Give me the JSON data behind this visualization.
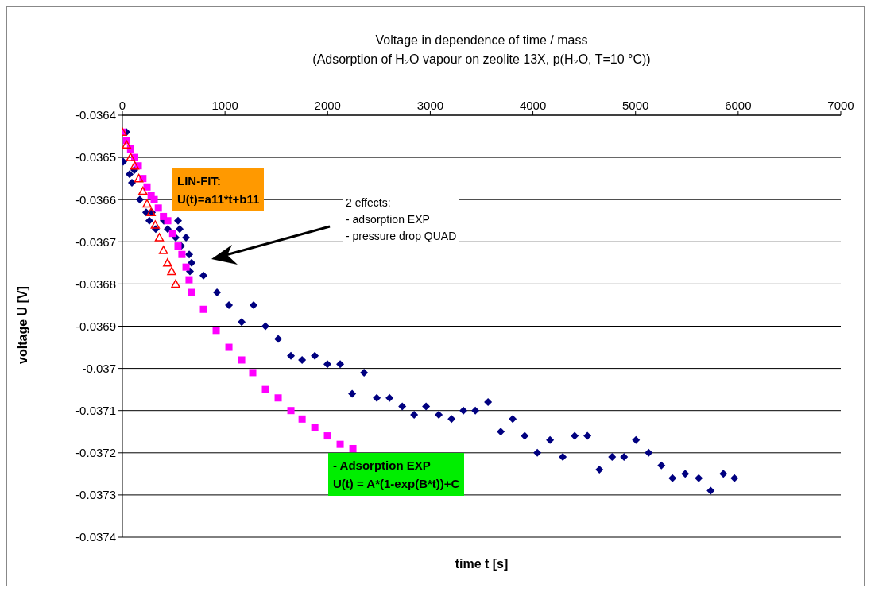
{
  "chart_data": {
    "type": "scatter",
    "title": "Voltage in dependence of time / mass",
    "subtitle": "(Adsorption of H₂O vapour on zeolite 13X, p(H₂O, T=10 °C))",
    "xlabel": "time t [s]",
    "ylabel": "voltage U [V]",
    "xlim": [
      0,
      7000
    ],
    "xticks": [
      0,
      1000,
      2000,
      3000,
      4000,
      5000,
      6000,
      7000
    ],
    "ylim": [
      -0.0374,
      -0.0364
    ],
    "yticks": [
      -0.0374,
      -0.0373,
      -0.0372,
      -0.0371,
      -0.037,
      -0.0369,
      -0.0368,
      -0.0367,
      -0.0366,
      -0.0365,
      -0.0364
    ],
    "grid": "y",
    "series": [
      {
        "marker": "diamond",
        "color": "#000080",
        "x": [
          39,
          8,
          70,
          93,
          116,
          170,
          232,
          263,
          287,
          325,
          403,
          442,
          542,
          519,
          558,
          573,
          620,
          651,
          674,
          658,
          790,
          922,
          1038,
          1278,
          1162,
          1394,
          1518,
          1642,
          1751,
          1875,
          1998,
          2122,
          2239,
          2355,
          2479,
          2603,
          2727,
          2843,
          2959,
          3083,
          3207,
          3323,
          3439,
          3563,
          3687,
          3803,
          3920,
          4043,
          4167,
          4291,
          4407,
          4531,
          4648,
          4772,
          4888,
          5004,
          5128,
          5252,
          5360,
          5484,
          5616,
          5732,
          5856,
          5964
        ],
        "values": [
          -0.03644,
          -0.03651,
          -0.03654,
          -0.03656,
          -0.03653,
          -0.0366,
          -0.03663,
          -0.03665,
          -0.03663,
          -0.03667,
          -0.03665,
          -0.03667,
          -0.03665,
          -0.03669,
          -0.03667,
          -0.03671,
          -0.03669,
          -0.03673,
          -0.03675,
          -0.03677,
          -0.03678,
          -0.03682,
          -0.03685,
          -0.03685,
          -0.03689,
          -0.0369,
          -0.03693,
          -0.03697,
          -0.03698,
          -0.03697,
          -0.03699,
          -0.03699,
          -0.03706,
          -0.03701,
          -0.03707,
          -0.03707,
          -0.03709,
          -0.03711,
          -0.03709,
          -0.03711,
          -0.03712,
          -0.0371,
          -0.0371,
          -0.03708,
          -0.03715,
          -0.03712,
          -0.03716,
          -0.0372,
          -0.03717,
          -0.03721,
          -0.03716,
          -0.03716,
          -0.03724,
          -0.03721,
          -0.03721,
          -0.03717,
          -0.0372,
          -0.03723,
          -0.03726,
          -0.03725,
          -0.03726,
          -0.03729,
          -0.03725,
          -0.03726
        ]
      },
      {
        "marker": "square",
        "color": "#ff00ff",
        "x": [
          0,
          40,
          80,
          120,
          155,
          200,
          240,
          280,
          310,
          350,
          400,
          442,
          490,
          542,
          580,
          620,
          650,
          674,
          790,
          914,
          1038,
          1162,
          1270,
          1394,
          1518,
          1642,
          1751,
          1875,
          1998,
          2122,
          2246
        ],
        "values": [
          -0.03644,
          -0.03646,
          -0.03648,
          -0.0365,
          -0.03652,
          -0.03655,
          -0.03657,
          -0.03659,
          -0.0366,
          -0.03662,
          -0.03664,
          -0.03665,
          -0.03668,
          -0.03671,
          -0.03673,
          -0.03676,
          -0.03679,
          -0.03682,
          -0.03686,
          -0.03691,
          -0.03695,
          -0.03698,
          -0.03701,
          -0.03705,
          -0.03707,
          -0.0371,
          -0.03712,
          -0.03714,
          -0.03716,
          -0.03718,
          -0.03719
        ]
      },
      {
        "marker": "triangle",
        "color": "#ff0000",
        "x": [
          0,
          40,
          80,
          120,
          160,
          200,
          240,
          280,
          320,
          360,
          400,
          440,
          480,
          519
        ],
        "values": [
          -0.03644,
          -0.03647,
          -0.0365,
          -0.03652,
          -0.03655,
          -0.03658,
          -0.03661,
          -0.03663,
          -0.03666,
          -0.03669,
          -0.03672,
          -0.03675,
          -0.03677,
          -0.0368
        ]
      }
    ],
    "annotations": [
      "LIN-FIT:\nU(t)=a11*t+b11",
      "2 effects:\n- adsorption EXP\n- pressure drop QUAD",
      "- Adsorption EXP\nU(t) = A*(1-exp(B*t))+C"
    ]
  }
}
